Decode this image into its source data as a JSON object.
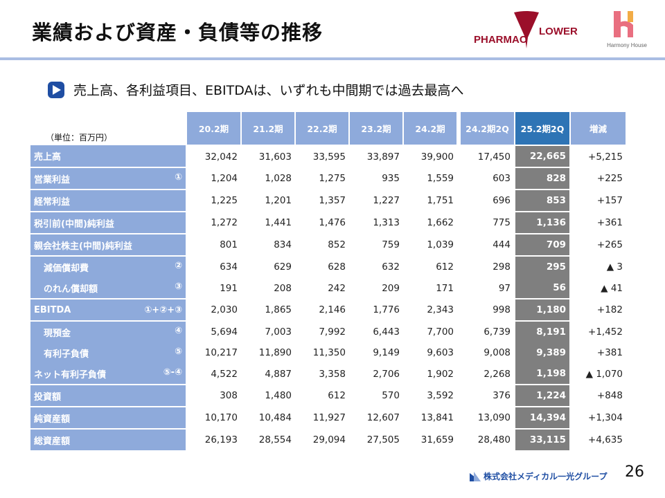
{
  "title": "業績および資産・負債等の推移",
  "logos": {
    "pharmacy": "PHARMAC FLOWER",
    "harmony": "Harmony House",
    "footer": "株式会社メディカル一光グループ"
  },
  "bullet": "売上高、各利益項目、EBITDAは、いずれも中間期では過去最高へ",
  "unit": "（単位：百万円）",
  "columns": [
    "20.2期",
    "21.2期",
    "22.2期",
    "23.2期",
    "24.2期",
    "24.2期2Q",
    "25.2期2Q",
    "増減"
  ],
  "rows": [
    {
      "label": "売上高",
      "note": "",
      "values": [
        "32,042",
        "31,603",
        "33,595",
        "33,897",
        "39,900",
        "17,450",
        "22,665",
        "+5,215"
      ]
    },
    {
      "label": "営業利益",
      "note": "①",
      "values": [
        "1,204",
        "1,028",
        "1,275",
        "935",
        "1,559",
        "603",
        "828",
        "+225"
      ]
    },
    {
      "label": "経常利益",
      "note": "",
      "values": [
        "1,225",
        "1,201",
        "1,357",
        "1,227",
        "1,751",
        "696",
        "853",
        "+157"
      ]
    },
    {
      "label": "税引前(中間)純利益",
      "note": "",
      "values": [
        "1,272",
        "1,441",
        "1,476",
        "1,313",
        "1,662",
        "775",
        "1,136",
        "+361"
      ]
    },
    {
      "label": "親会社株主(中間)純利益",
      "note": "",
      "values": [
        "801",
        "834",
        "852",
        "759",
        "1,039",
        "444",
        "709",
        "+265"
      ]
    },
    {
      "label": "減価償却費",
      "note": "②",
      "values": [
        "634",
        "629",
        "628",
        "632",
        "612",
        "298",
        "295",
        "▲ 3"
      ]
    },
    {
      "label": "のれん償却額",
      "note": "③",
      "values": [
        "191",
        "208",
        "242",
        "209",
        "171",
        "97",
        "56",
        "▲ 41"
      ]
    },
    {
      "label": "EBITDA",
      "note": "①+②+③",
      "values": [
        "2,030",
        "1,865",
        "2,146",
        "1,776",
        "2,343",
        "998",
        "1,180",
        "+182"
      ]
    },
    {
      "label": "現預金",
      "note": "④",
      "values": [
        "5,694",
        "7,003",
        "7,992",
        "6,443",
        "7,700",
        "6,739",
        "8,191",
        "+1,452"
      ]
    },
    {
      "label": "有利子負債",
      "note": "⑤",
      "values": [
        "10,217",
        "11,890",
        "11,350",
        "9,149",
        "9,603",
        "9,008",
        "9,389",
        "+381"
      ]
    },
    {
      "label": "ネット有利子負債",
      "note": "⑤-④",
      "values": [
        "4,522",
        "4,887",
        "3,358",
        "2,706",
        "1,902",
        "2,268",
        "1,198",
        "▲ 1,070"
      ]
    },
    {
      "label": "投資額",
      "note": "",
      "values": [
        "308",
        "1,480",
        "612",
        "570",
        "3,592",
        "376",
        "1,224",
        "+848"
      ]
    },
    {
      "label": "純資産額",
      "note": "",
      "values": [
        "10,170",
        "10,484",
        "11,927",
        "12,607",
        "13,841",
        "13,090",
        "14,394",
        "+1,304"
      ]
    },
    {
      "label": "総資産額",
      "note": "",
      "values": [
        "26,193",
        "28,554",
        "29,094",
        "27,505",
        "31,659",
        "28,480",
        "33,115",
        "+4,635"
      ]
    }
  ],
  "page_number": "26",
  "colors": {
    "header": "#8eaadb",
    "current_header": "#2e74b5",
    "current_cells": "#7f7f7f",
    "rule": "#a9bde3"
  }
}
